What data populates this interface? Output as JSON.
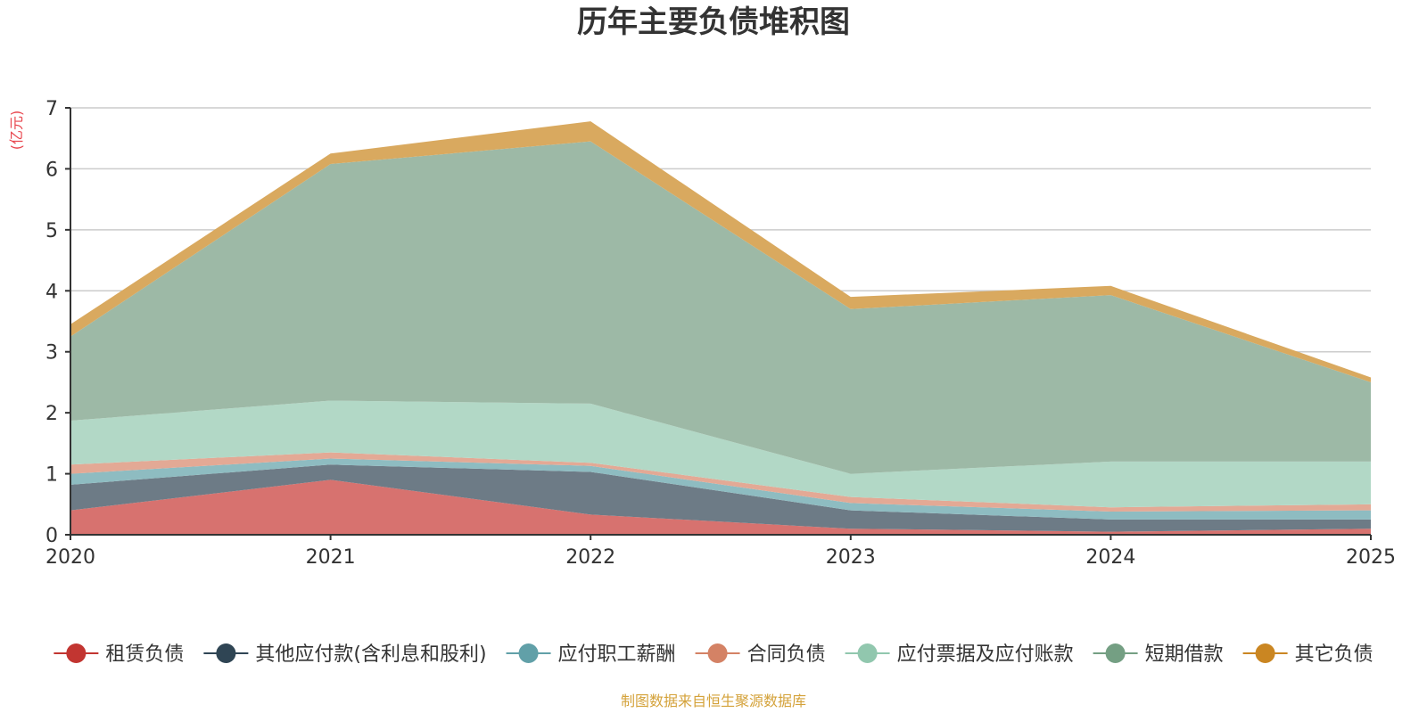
{
  "chart_data": {
    "type": "area",
    "stacked": true,
    "title": "历年主要负债堆积图",
    "ylabel": "(亿元)",
    "ylabel_color": "#e8464e",
    "ylim": [
      0,
      7
    ],
    "yticks": [
      0,
      1,
      2,
      3,
      4,
      5,
      6,
      7
    ],
    "grid": true,
    "legend_position": "bottom",
    "categories": [
      "2020",
      "2021",
      "2022",
      "2023",
      "2024",
      "2025"
    ],
    "series": [
      {
        "name": "租赁负债",
        "color": "#c23531",
        "fill": "#d7726f",
        "values": [
          0.4,
          0.9,
          0.33,
          0.1,
          0.05,
          0.1
        ]
      },
      {
        "name": "其他应付款(含利息和股利)",
        "color": "#2f4554",
        "fill": "#6d7b86",
        "values": [
          0.42,
          0.25,
          0.7,
          0.3,
          0.2,
          0.15
        ]
      },
      {
        "name": "应付职工薪酬",
        "color": "#61a0a8",
        "fill": "#8ebcc1",
        "values": [
          0.18,
          0.1,
          0.1,
          0.12,
          0.13,
          0.15
        ]
      },
      {
        "name": "合同负债",
        "color": "#d48265",
        "fill": "#e3a995",
        "values": [
          0.15,
          0.1,
          0.05,
          0.1,
          0.07,
          0.1
        ]
      },
      {
        "name": "应付票据及应付账款",
        "color": "#91c7ae",
        "fill": "#b2d8c6",
        "values": [
          0.72,
          0.85,
          0.97,
          0.38,
          0.75,
          0.7
        ]
      },
      {
        "name": "短期借款",
        "color": "#749f83",
        "fill": "#9db9a6",
        "values": [
          1.38,
          3.88,
          4.3,
          2.7,
          2.73,
          1.3
        ]
      },
      {
        "name": "其它负债",
        "color": "#ca8622",
        "fill": "#d9a95f",
        "values": [
          0.2,
          0.17,
          0.33,
          0.2,
          0.15,
          0.08
        ]
      }
    ]
  },
  "footer": {
    "source": "制图数据来自恒生聚源数据库",
    "source_color": "#d4a23a"
  }
}
